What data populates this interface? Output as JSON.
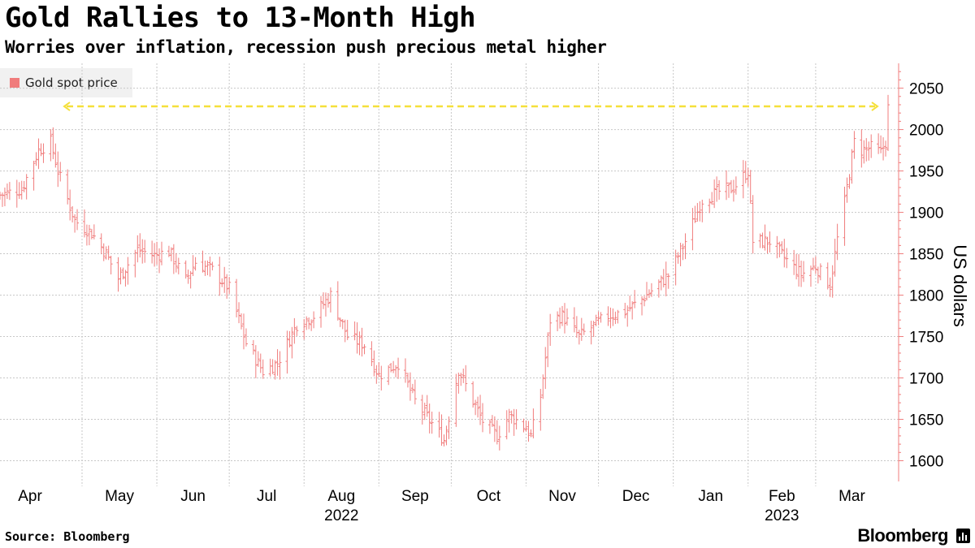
{
  "header": {
    "title": "Gold Rallies to 13-Month High",
    "subtitle": "Worries over inflation, recession push precious metal higher"
  },
  "footer": {
    "source": "Source: Bloomberg",
    "brand": "Bloomberg"
  },
  "chart_data": {
    "type": "ohlc",
    "legend": [
      {
        "label": "Gold spot price",
        "color": "#f07c7c"
      }
    ],
    "ylabel": "US dollars",
    "ylim": [
      1575,
      2080
    ],
    "yticks": [
      1600,
      1650,
      1700,
      1750,
      1800,
      1850,
      1900,
      1950,
      2000,
      2050
    ],
    "xlim": [
      "2022-03-28",
      "2023-03-31"
    ],
    "xtick_months": [
      "Apr",
      "May",
      "Jun",
      "Jul",
      "Aug",
      "Sep",
      "Oct",
      "Nov",
      "Dec",
      "Jan",
      "Feb",
      "Mar"
    ],
    "xtick_years": [
      {
        "label": "2022",
        "month": "Aug"
      },
      {
        "label": "2023",
        "month": "Feb"
      }
    ],
    "annotation": {
      "type": "horizontal-dashed-line",
      "value": 2028,
      "color": "#f5e03a"
    },
    "series_color": "#f07c7c",
    "grid": true,
    "close_anchors": [
      [
        "2022-03-28",
        1921
      ],
      [
        "2022-04-06",
        1928
      ],
      [
        "2022-04-13",
        1975
      ],
      [
        "2022-04-18",
        1985
      ],
      [
        "2022-04-21",
        1950
      ],
      [
        "2022-04-28",
        1890
      ],
      [
        "2022-05-05",
        1875
      ],
      [
        "2022-05-11",
        1850
      ],
      [
        "2022-05-16",
        1820
      ],
      [
        "2022-05-24",
        1855
      ],
      [
        "2022-05-31",
        1848
      ],
      [
        "2022-06-06",
        1853
      ],
      [
        "2022-06-13",
        1818
      ],
      [
        "2022-06-17",
        1840
      ],
      [
        "2022-06-24",
        1830
      ],
      [
        "2022-07-01",
        1808
      ],
      [
        "2022-07-08",
        1742
      ],
      [
        "2022-07-15",
        1708
      ],
      [
        "2022-07-21",
        1718
      ],
      [
        "2022-07-29",
        1765
      ],
      [
        "2022-08-05",
        1775
      ],
      [
        "2022-08-12",
        1800
      ],
      [
        "2022-08-19",
        1750
      ],
      [
        "2022-08-26",
        1740
      ],
      [
        "2022-09-01",
        1703
      ],
      [
        "2022-09-09",
        1718
      ],
      [
        "2022-09-16",
        1672
      ],
      [
        "2022-09-23",
        1645
      ],
      [
        "2022-09-28",
        1625
      ],
      [
        "2022-10-04",
        1710
      ],
      [
        "2022-10-10",
        1672
      ],
      [
        "2022-10-14",
        1648
      ],
      [
        "2022-10-20",
        1630
      ],
      [
        "2022-10-25",
        1655
      ],
      [
        "2022-11-01",
        1640
      ],
      [
        "2022-11-03",
        1630
      ],
      [
        "2022-11-07",
        1678
      ],
      [
        "2022-11-11",
        1770
      ],
      [
        "2022-11-16",
        1775
      ],
      [
        "2022-11-23",
        1750
      ],
      [
        "2022-11-30",
        1765
      ],
      [
        "2022-12-05",
        1775
      ],
      [
        "2022-12-12",
        1780
      ],
      [
        "2022-12-19",
        1795
      ],
      [
        "2022-12-30",
        1824
      ],
      [
        "2023-01-06",
        1865
      ],
      [
        "2023-01-13",
        1915
      ],
      [
        "2023-01-20",
        1925
      ],
      [
        "2023-01-26",
        1930
      ],
      [
        "2023-02-01",
        1950
      ],
      [
        "2023-02-03",
        1865
      ],
      [
        "2023-02-10",
        1865
      ],
      [
        "2023-02-17",
        1842
      ],
      [
        "2023-02-23",
        1825
      ],
      [
        "2023-03-01",
        1835
      ],
      [
        "2023-03-07",
        1812
      ],
      [
        "2023-03-10",
        1868
      ],
      [
        "2023-03-13",
        1912
      ],
      [
        "2023-03-17",
        1985
      ],
      [
        "2023-03-20",
        1975
      ],
      [
        "2023-03-24",
        1978
      ],
      [
        "2023-03-28",
        1972
      ],
      [
        "2023-03-30",
        1985
      ],
      [
        "2023-03-31",
        2026
      ]
    ]
  }
}
